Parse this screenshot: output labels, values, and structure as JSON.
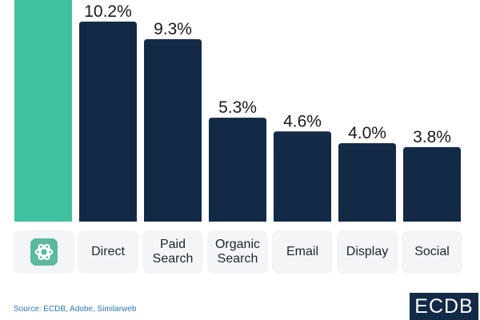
{
  "chart_data": {
    "type": "bar",
    "categories": [
      "ChatGPT",
      "Direct",
      "Paid\nSearch",
      "Organic\nSearch",
      "Email",
      "Display",
      "Social"
    ],
    "values": [
      null,
      10.2,
      9.3,
      5.3,
      4.6,
      4.0,
      3.8
    ],
    "value_labels": [
      "",
      "10.2%",
      "9.3%",
      "5.3%",
      "4.6%",
      "4.0%",
      "3.8%"
    ],
    "ylim": [
      0,
      10.2
    ],
    "colors": {
      "highlight": "#3fc1a0",
      "bars": "#132a47"
    },
    "icons": [
      "chatgpt-logo-icon",
      null,
      null,
      null,
      null,
      null,
      null
    ]
  },
  "source": "Source: ECDB, Adobe, Similarweb",
  "brand": "ECDB"
}
